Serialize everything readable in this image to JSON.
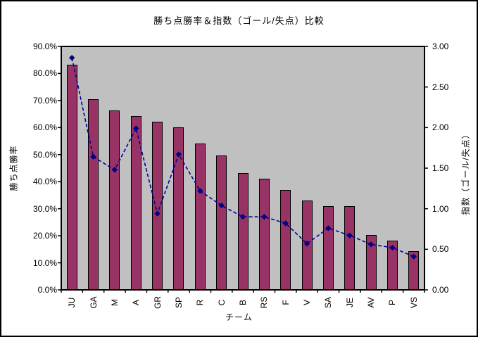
{
  "chart_data": {
    "type": "bar+line",
    "title": "勝ち点勝率＆指数（ゴール/失点）比較",
    "xlabel": "チーム",
    "ylabel_left": "勝ち点勝率",
    "ylabel_right": "指数（ゴール/失点）",
    "categories": [
      "JU",
      "GA",
      "M",
      "A",
      "GR",
      "SP",
      "R",
      "C",
      "B",
      "RS",
      "F",
      "V",
      "SA",
      "JE",
      "AV",
      "P",
      "VS"
    ],
    "series": [
      {
        "name": "勝ち点勝率",
        "type": "bar",
        "axis": "left",
        "unit": "%",
        "color": "#993366",
        "border_color": "#000000",
        "values": [
          83.3,
          70.5,
          66.3,
          64.2,
          62.2,
          60.1,
          54.0,
          49.7,
          43.3,
          41.1,
          37.0,
          33.0,
          31.0,
          31.0,
          20.3,
          18.3,
          14.3
        ]
      },
      {
        "name": "指数（ゴール/失点）",
        "type": "line",
        "axis": "right",
        "line_style": "dashed",
        "color": "#0000A0",
        "marker": "diamond",
        "marker_color": "#000080",
        "values": [
          2.86,
          1.64,
          1.48,
          1.99,
          0.94,
          1.67,
          1.22,
          1.04,
          0.9,
          0.9,
          0.82,
          0.57,
          0.76,
          0.67,
          0.56,
          0.52,
          0.41
        ]
      }
    ],
    "left_axis": {
      "min": 0,
      "max": 90,
      "step": 10,
      "tick_labels": [
        "0.0%",
        "10.0%",
        "20.0%",
        "30.0%",
        "40.0%",
        "50.0%",
        "60.0%",
        "70.0%",
        "80.0%",
        "90.0%"
      ]
    },
    "right_axis": {
      "min": 0,
      "max": 3,
      "step": 0.5,
      "tick_labels": [
        "0.00",
        "0.50",
        "1.00",
        "1.50",
        "2.00",
        "2.50",
        "3.00"
      ]
    },
    "plot": {
      "background": "#C0C0C0",
      "border_color": "#000000",
      "grid": "off",
      "legend": "none"
    }
  }
}
